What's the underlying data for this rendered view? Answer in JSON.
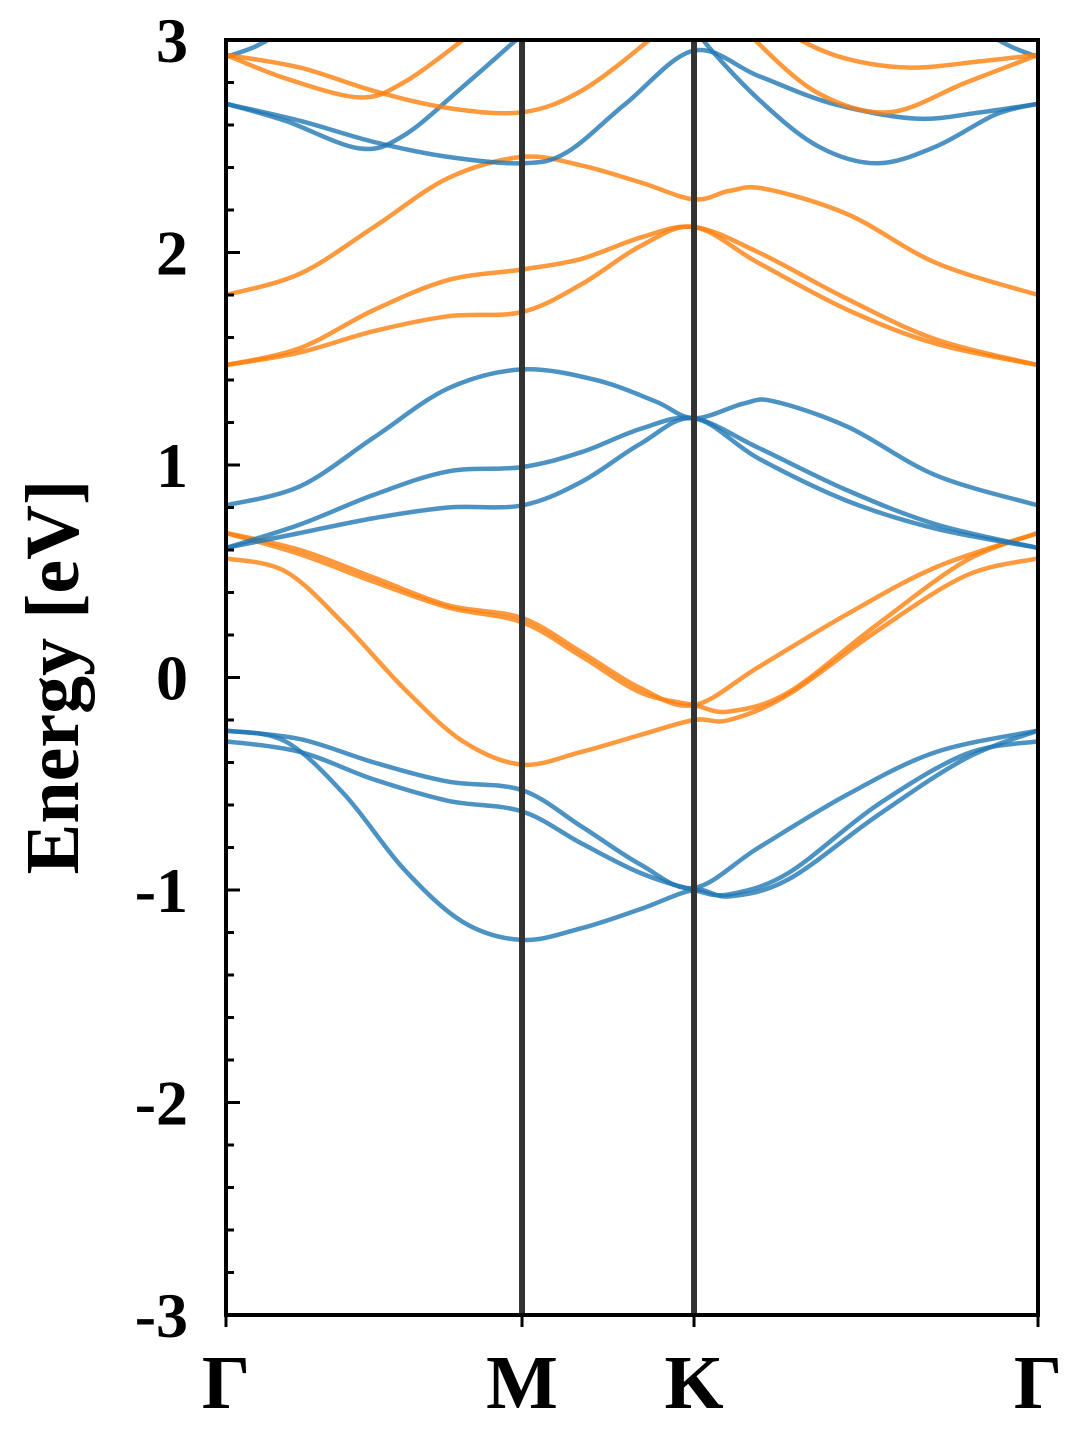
{
  "chart_data": {
    "type": "line",
    "title": "",
    "xlabel": "",
    "ylabel": "Energy [eV]",
    "ylim": [
      -3,
      3
    ],
    "yticks": [
      -3,
      -2,
      -1,
      0,
      1,
      2,
      3
    ],
    "ytick_labels": [
      "-3",
      "-2",
      "-1",
      "0",
      "1",
      "2",
      "3"
    ],
    "yminor_step": 0.2,
    "xlim": [
      0,
      2.743
    ],
    "kpoints": [
      {
        "label": "Γ",
        "k": 0
      },
      {
        "label": "M",
        "k": 1
      },
      {
        "label": "K",
        "k": 1.581
      },
      {
        "label": "Γ",
        "k": 2.743
      }
    ],
    "colors": {
      "spin_a": "#1f77b4",
      "spin_b": "#ff7f0e",
      "vline": "#333333"
    },
    "grid": false,
    "series": [
      {
        "name": "blue-band-1",
        "color": "spin_a",
        "points": [
          [
            0,
            -0.25
          ],
          [
            0.25,
            -0.29
          ],
          [
            0.5,
            -0.4
          ],
          [
            0.75,
            -0.49
          ],
          [
            1,
            -0.53
          ],
          [
            1.2,
            -0.7
          ],
          [
            1.4,
            -0.88
          ],
          [
            1.581,
            -0.99
          ],
          [
            1.8,
            -0.8
          ],
          [
            2.1,
            -0.55
          ],
          [
            2.4,
            -0.35
          ],
          [
            2.743,
            -0.25
          ]
        ]
      },
      {
        "name": "blue-band-2",
        "color": "spin_a",
        "points": [
          [
            0,
            -0.3
          ],
          [
            0.25,
            -0.35
          ],
          [
            0.5,
            -0.48
          ],
          [
            0.75,
            -0.58
          ],
          [
            1,
            -0.63
          ],
          [
            1.2,
            -0.78
          ],
          [
            1.4,
            -0.92
          ],
          [
            1.581,
            -1.0
          ],
          [
            1.7,
            -1.02
          ],
          [
            1.9,
            -0.92
          ],
          [
            2.2,
            -0.6
          ],
          [
            2.5,
            -0.36
          ],
          [
            2.743,
            -0.3
          ]
        ]
      },
      {
        "name": "blue-band-3",
        "color": "spin_a",
        "points": [
          [
            0,
            -0.25
          ],
          [
            0.2,
            -0.3
          ],
          [
            0.4,
            -0.55
          ],
          [
            0.6,
            -0.9
          ],
          [
            0.8,
            -1.15
          ],
          [
            1,
            -1.235
          ],
          [
            1.2,
            -1.18
          ],
          [
            1.4,
            -1.09
          ],
          [
            1.581,
            -1.0
          ],
          [
            1.7,
            -1.03
          ],
          [
            1.9,
            -0.95
          ],
          [
            2.2,
            -0.65
          ],
          [
            2.5,
            -0.38
          ],
          [
            2.743,
            -0.25
          ]
        ]
      },
      {
        "name": "orange-band-1",
        "color": "spin_b",
        "points": [
          [
            0,
            0.68
          ],
          [
            0.25,
            0.6
          ],
          [
            0.5,
            0.47
          ],
          [
            0.75,
            0.34
          ],
          [
            1,
            0.28
          ],
          [
            1.2,
            0.12
          ],
          [
            1.4,
            -0.05
          ],
          [
            1.581,
            -0.13
          ],
          [
            1.8,
            0.05
          ],
          [
            2.1,
            0.3
          ],
          [
            2.4,
            0.52
          ],
          [
            2.743,
            0.68
          ]
        ]
      },
      {
        "name": "orange-band-2",
        "color": "spin_b",
        "points": [
          [
            0,
            0.68
          ],
          [
            0.25,
            0.58
          ],
          [
            0.5,
            0.45
          ],
          [
            0.75,
            0.33
          ],
          [
            1,
            0.26
          ],
          [
            1.2,
            0.1
          ],
          [
            1.4,
            -0.07
          ],
          [
            1.581,
            -0.13
          ],
          [
            1.7,
            -0.16
          ],
          [
            1.9,
            -0.07
          ],
          [
            2.2,
            0.25
          ],
          [
            2.5,
            0.55
          ],
          [
            2.743,
            0.68
          ]
        ]
      },
      {
        "name": "orange-band-3",
        "color": "spin_b",
        "points": [
          [
            0,
            0.56
          ],
          [
            0.2,
            0.5
          ],
          [
            0.4,
            0.25
          ],
          [
            0.6,
            -0.05
          ],
          [
            0.8,
            -0.3
          ],
          [
            1,
            -0.41
          ],
          [
            1.2,
            -0.35
          ],
          [
            1.4,
            -0.27
          ],
          [
            1.581,
            -0.2
          ],
          [
            1.7,
            -0.2
          ],
          [
            1.9,
            -0.08
          ],
          [
            2.2,
            0.22
          ],
          [
            2.5,
            0.48
          ],
          [
            2.743,
            0.56
          ]
        ]
      },
      {
        "name": "blue-band-4",
        "color": "spin_a",
        "points": [
          [
            0,
            0.81
          ],
          [
            0.25,
            0.9
          ],
          [
            0.5,
            1.13
          ],
          [
            0.75,
            1.36
          ],
          [
            1,
            1.45
          ],
          [
            1.25,
            1.4
          ],
          [
            1.45,
            1.3
          ],
          [
            1.581,
            1.22
          ],
          [
            1.75,
            1.29
          ],
          [
            1.85,
            1.3
          ],
          [
            2.1,
            1.18
          ],
          [
            2.4,
            0.95
          ],
          [
            2.743,
            0.81
          ]
        ]
      },
      {
        "name": "blue-band-5",
        "color": "spin_a",
        "points": [
          [
            0,
            0.61
          ],
          [
            0.25,
            0.72
          ],
          [
            0.5,
            0.86
          ],
          [
            0.75,
            0.97
          ],
          [
            1,
            0.99
          ],
          [
            1.2,
            1.06
          ],
          [
            1.4,
            1.17
          ],
          [
            1.581,
            1.22
          ],
          [
            1.8,
            1.08
          ],
          [
            2.1,
            0.88
          ],
          [
            2.4,
            0.72
          ],
          [
            2.743,
            0.61
          ]
        ]
      },
      {
        "name": "blue-band-6",
        "color": "spin_a",
        "points": [
          [
            0,
            0.61
          ],
          [
            0.25,
            0.68
          ],
          [
            0.5,
            0.75
          ],
          [
            0.75,
            0.8
          ],
          [
            1,
            0.81
          ],
          [
            1.2,
            0.92
          ],
          [
            1.4,
            1.1
          ],
          [
            1.581,
            1.22
          ],
          [
            1.8,
            1.03
          ],
          [
            2.1,
            0.83
          ],
          [
            2.4,
            0.7
          ],
          [
            2.743,
            0.61
          ]
        ]
      },
      {
        "name": "orange-band-4",
        "color": "spin_b",
        "points": [
          [
            0,
            1.8
          ],
          [
            0.25,
            1.9
          ],
          [
            0.5,
            2.12
          ],
          [
            0.75,
            2.35
          ],
          [
            1,
            2.45
          ],
          [
            1.2,
            2.41
          ],
          [
            1.4,
            2.33
          ],
          [
            1.581,
            2.25
          ],
          [
            1.7,
            2.29
          ],
          [
            1.82,
            2.3
          ],
          [
            2.1,
            2.18
          ],
          [
            2.4,
            1.95
          ],
          [
            2.743,
            1.8
          ]
        ]
      },
      {
        "name": "orange-band-5",
        "color": "spin_b",
        "points": [
          [
            0,
            1.47
          ],
          [
            0.25,
            1.55
          ],
          [
            0.5,
            1.73
          ],
          [
            0.75,
            1.87
          ],
          [
            1,
            1.92
          ],
          [
            1.2,
            1.97
          ],
          [
            1.4,
            2.07
          ],
          [
            1.581,
            2.12
          ],
          [
            1.8,
            2.0
          ],
          [
            2.1,
            1.78
          ],
          [
            2.4,
            1.59
          ],
          [
            2.743,
            1.47
          ]
        ]
      },
      {
        "name": "orange-band-6",
        "color": "spin_b",
        "points": [
          [
            0,
            1.47
          ],
          [
            0.25,
            1.53
          ],
          [
            0.5,
            1.63
          ],
          [
            0.75,
            1.7
          ],
          [
            1,
            1.72
          ],
          [
            1.2,
            1.85
          ],
          [
            1.4,
            2.03
          ],
          [
            1.581,
            2.12
          ],
          [
            1.8,
            1.95
          ],
          [
            2.1,
            1.73
          ],
          [
            2.4,
            1.57
          ],
          [
            2.743,
            1.47
          ]
        ]
      },
      {
        "name": "blue-band-7",
        "color": "spin_a",
        "points": [
          [
            0,
            2.92
          ],
          [
            0.1,
            2.97
          ],
          [
            0.2,
            3.05
          ],
          [
            0.3,
            3.15
          ]
        ]
      },
      {
        "name": "blue-band-8",
        "color": "spin_a",
        "points": [
          [
            0,
            2.7
          ],
          [
            0.2,
            2.62
          ],
          [
            0.45,
            2.49
          ],
          [
            0.6,
            2.55
          ],
          [
            0.8,
            2.78
          ],
          [
            0.98,
            3.0
          ],
          [
            1.1,
            3.15
          ]
        ]
      },
      {
        "name": "blue-band-9",
        "color": "spin_a",
        "points": [
          [
            0,
            2.7
          ],
          [
            0.25,
            2.62
          ],
          [
            0.5,
            2.52
          ],
          [
            0.75,
            2.45
          ],
          [
            1,
            2.42
          ],
          [
            1.15,
            2.47
          ],
          [
            1.35,
            2.7
          ],
          [
            1.581,
            2.95
          ],
          [
            1.8,
            2.83
          ],
          [
            2.05,
            2.7
          ],
          [
            2.33,
            2.63
          ],
          [
            2.55,
            2.66
          ],
          [
            2.743,
            2.7
          ]
        ]
      },
      {
        "name": "blue-band-10",
        "color": "spin_a",
        "points": [
          [
            1.55,
            3.15
          ],
          [
            1.611,
            3.0
          ],
          [
            1.8,
            2.72
          ],
          [
            2.0,
            2.5
          ],
          [
            2.2,
            2.42
          ],
          [
            2.4,
            2.5
          ],
          [
            2.6,
            2.65
          ],
          [
            2.743,
            2.7
          ]
        ]
      },
      {
        "name": "blue-band-11",
        "color": "spin_a",
        "points": [
          [
            2.743,
            2.92
          ],
          [
            2.65,
            2.97
          ],
          [
            2.55,
            3.05
          ],
          [
            2.45,
            3.15
          ]
        ]
      },
      {
        "name": "orange-band-7",
        "color": "spin_b",
        "points": [
          [
            0,
            2.93
          ],
          [
            0.2,
            2.82
          ],
          [
            0.45,
            2.73
          ],
          [
            0.6,
            2.8
          ],
          [
            0.8,
            3.0
          ],
          [
            0.9,
            3.12
          ]
        ]
      },
      {
        "name": "orange-band-8",
        "color": "spin_b",
        "points": [
          [
            0,
            2.93
          ],
          [
            0.25,
            2.87
          ],
          [
            0.5,
            2.76
          ],
          [
            0.75,
            2.68
          ],
          [
            1,
            2.66
          ],
          [
            1.2,
            2.76
          ],
          [
            1.43,
            3.0
          ],
          [
            1.5,
            3.1
          ]
        ]
      },
      {
        "name": "orange-band-9",
        "color": "spin_b",
        "points": [
          [
            1.7,
            3.15
          ],
          [
            1.787,
            3.0
          ],
          [
            2.0,
            2.75
          ],
          [
            2.24,
            2.66
          ],
          [
            2.5,
            2.8
          ],
          [
            2.743,
            2.93
          ]
        ]
      },
      {
        "name": "orange-band-10",
        "color": "spin_b",
        "points": [
          [
            1.85,
            3.1
          ],
          [
            1.94,
            3.0
          ],
          [
            2.1,
            2.91
          ],
          [
            2.31,
            2.87
          ],
          [
            2.55,
            2.9
          ],
          [
            2.743,
            2.93
          ]
        ]
      }
    ]
  }
}
